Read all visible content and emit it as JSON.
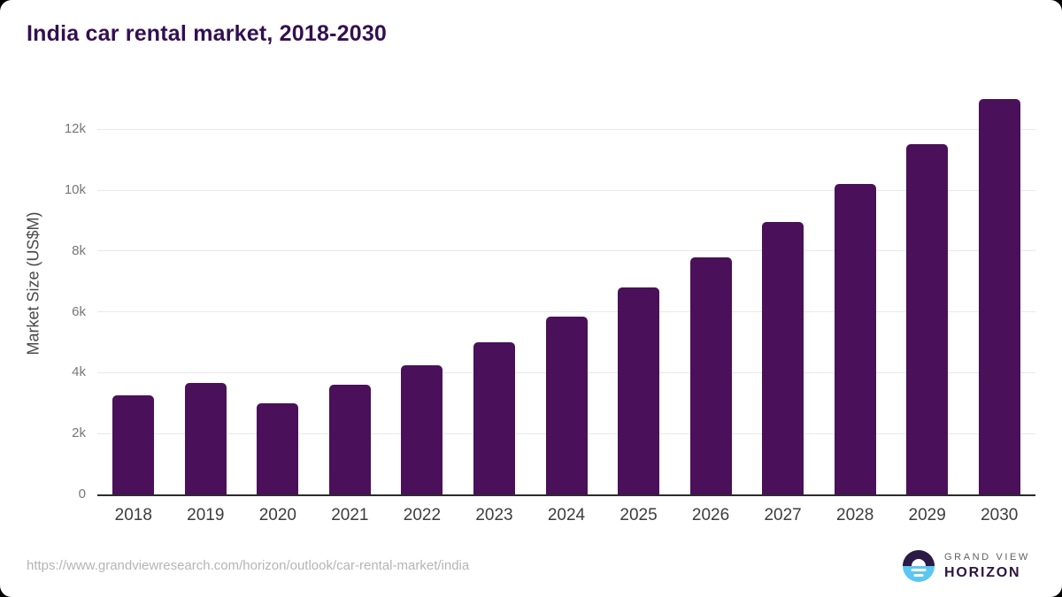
{
  "chart_data": {
    "type": "bar",
    "title": "India car rental market, 2018-2030",
    "xlabel": "",
    "ylabel": "Market Size (US$M)",
    "categories": [
      "2018",
      "2019",
      "2020",
      "2021",
      "2022",
      "2023",
      "2024",
      "2025",
      "2026",
      "2027",
      "2028",
      "2029",
      "2030"
    ],
    "values": [
      3250,
      3650,
      3000,
      3600,
      4250,
      5000,
      5850,
      6800,
      7800,
      8950,
      10200,
      11500,
      13000
    ],
    "unit": "US$M",
    "ylim": [
      0,
      13100
    ],
    "yticks": [
      {
        "value": 0,
        "label": "0"
      },
      {
        "value": 2000,
        "label": "2k"
      },
      {
        "value": 4000,
        "label": "4k"
      },
      {
        "value": 6000,
        "label": "6k"
      },
      {
        "value": 8000,
        "label": "8k"
      },
      {
        "value": 10000,
        "label": "10k"
      },
      {
        "value": 12000,
        "label": "12k"
      }
    ],
    "grid": "horizontal",
    "legend": "none",
    "bar_color": "#4a1059",
    "title_color": "#330f50",
    "axis_line_color": "#2b2b2b",
    "gridline_color": "#e8e8ea"
  },
  "footer": {
    "source_url": "https://www.grandviewresearch.com/horizon/outlook/car-rental-market/india",
    "logo": {
      "line1": "GRAND VIEW",
      "line2": "HORIZON",
      "icon": "horizon-sun-over-water-circle",
      "icon_top_color": "#2a1a45",
      "icon_bottom_color": "#5cc6f3",
      "text_color_top": "#5f6066",
      "text_color_bottom": "#2c1543"
    }
  }
}
